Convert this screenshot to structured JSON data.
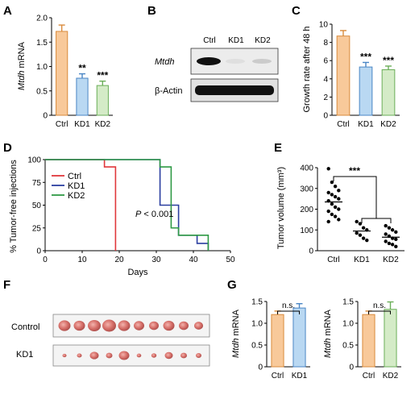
{
  "colors": {
    "ctrl": "#f8c99a",
    "kd1": "#b9d8f2",
    "kd2": "#d4ebc7",
    "ctrl_line": "#e0373b",
    "kd1_line": "#2b3fa0",
    "kd2_line": "#2f9a45"
  },
  "chart_data": [
    {
      "type": "bar",
      "panel": "A",
      "categories": [
        "Ctrl",
        "KD1",
        "KD2"
      ],
      "values": [
        1.72,
        0.76,
        0.61
      ],
      "errors": [
        0.13,
        0.09,
        0.09
      ],
      "significance": [
        "",
        "**",
        "***"
      ],
      "ylabel_italic": "Mtdh",
      "ylabel_rest": " mRNA",
      "ylim": [
        0,
        2.0
      ],
      "yticks": [
        "0",
        "0.5",
        "1.0",
        "1.5",
        "2.0"
      ]
    },
    {
      "type": "blot",
      "panel": "B",
      "lanes": [
        "Ctrl",
        "KD1",
        "KD2"
      ],
      "rows": [
        {
          "label": "Mtdh",
          "intensity": [
            1.0,
            0.05,
            0.15
          ]
        },
        {
          "label": "β-Actin",
          "intensity": [
            1.0,
            1.0,
            1.0
          ]
        }
      ]
    },
    {
      "type": "bar",
      "panel": "C",
      "categories": [
        "Ctrl",
        "KD1",
        "KD2"
      ],
      "values": [
        8.7,
        5.3,
        5.0
      ],
      "errors": [
        0.6,
        0.5,
        0.4
      ],
      "significance": [
        "",
        "***",
        "***"
      ],
      "ylabel": "Growth rate after 48 h",
      "ylim": [
        0,
        10
      ],
      "yticks": [
        "0",
        "2",
        "4",
        "6",
        "8",
        "10"
      ]
    },
    {
      "type": "line",
      "panel": "D",
      "xlabel": "Days",
      "ylabel": "% Tumor-free injections",
      "xlim": [
        0,
        50
      ],
      "ylim": [
        0,
        100
      ],
      "xticks": [
        "0",
        "10",
        "20",
        "30",
        "40",
        "50"
      ],
      "yticks": [
        "0",
        "25",
        "50",
        "75",
        "100"
      ],
      "annotation_italic": "P",
      "annotation_rest": " < 0.001",
      "legend_placement": "top-left",
      "series": [
        {
          "name": "Ctrl",
          "x": [
            0,
            16,
            16,
            19,
            19
          ],
          "y": [
            100,
            100,
            92,
            92,
            0
          ]
        },
        {
          "name": "KD1",
          "x": [
            0,
            31,
            31,
            36,
            36,
            41,
            41,
            44,
            44
          ],
          "y": [
            100,
            100,
            50,
            50,
            17,
            17,
            8,
            8,
            0
          ]
        },
        {
          "name": "KD2",
          "x": [
            0,
            31,
            31,
            34,
            34,
            36,
            36,
            44,
            44
          ],
          "y": [
            100,
            100,
            92,
            92,
            25,
            25,
            17,
            17,
            0
          ]
        }
      ]
    },
    {
      "type": "scatter",
      "panel": "E",
      "categories": [
        "Ctrl",
        "KD1",
        "KD2"
      ],
      "ylabel": "Tumor volume (mm³)",
      "ylim": [
        0,
        400
      ],
      "yticks": [
        "0",
        "100",
        "200",
        "300",
        "400"
      ],
      "significance": "***",
      "means": [
        235,
        95,
        65
      ],
      "points": [
        [
          395,
          330,
          310,
          290,
          280,
          270,
          260,
          250,
          240,
          225,
          210,
          200,
          190,
          175,
          165,
          150,
          140
        ],
        [
          140,
          130,
          110,
          100,
          85,
          75,
          60,
          50
        ],
        [
          120,
          110,
          100,
          90,
          80,
          70,
          60,
          55,
          45,
          35,
          30,
          20
        ]
      ]
    },
    {
      "type": "bar",
      "panel": "G1",
      "categories": [
        "Ctrl",
        "KD1"
      ],
      "values": [
        1.2,
        1.35
      ],
      "errors": [
        0.08,
        0.1
      ],
      "significance": "n.s.",
      "ylabel_italic": "Mtdh",
      "ylabel_rest": " mRNA",
      "ylim": [
        0,
        1.5
      ],
      "yticks": [
        "0",
        "0.5",
        "1.0",
        "1.5"
      ]
    },
    {
      "type": "bar",
      "panel": "G2",
      "categories": [
        "Ctrl",
        "KD2"
      ],
      "values": [
        1.2,
        1.32
      ],
      "errors": [
        0.08,
        0.17
      ],
      "significance": "n.s.",
      "ylabel_italic": "Mtdh",
      "ylabel_rest": " mRNA",
      "ylim": [
        0,
        1.5
      ],
      "yticks": [
        "0",
        "0.5",
        "1.0",
        "1.5"
      ]
    }
  ],
  "panels": {
    "A": "A",
    "B": "B",
    "C": "C",
    "D": "D",
    "E": "E",
    "F": "F",
    "G": "G"
  },
  "panelF": {
    "control_label": "Control",
    "kd1_label": "KD1",
    "control_count": 10,
    "kd1_count": 10
  }
}
